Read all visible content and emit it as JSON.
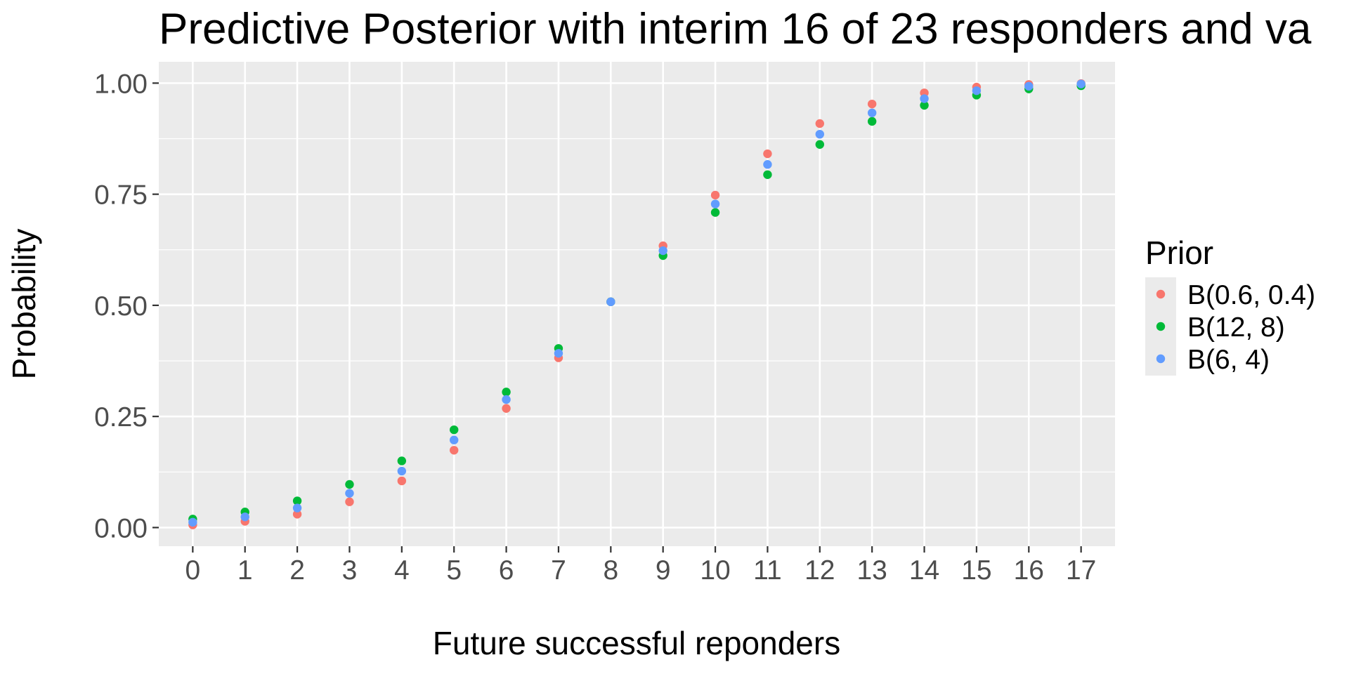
{
  "chart_data": {
    "type": "scatter",
    "title": "Predictive Posterior with interim 16 of 23 responders and va",
    "xlabel": "Future successful reponders",
    "ylabel": "Probability",
    "x": [
      0,
      1,
      2,
      3,
      4,
      5,
      6,
      7,
      8,
      9,
      10,
      11,
      12,
      13,
      14,
      15,
      16,
      17
    ],
    "x_tick_labels": [
      "0",
      "1",
      "2",
      "3",
      "4",
      "5",
      "6",
      "7",
      "8",
      "9",
      "10",
      "11",
      "12",
      "13",
      "14",
      "15",
      "16",
      "17"
    ],
    "y_tick_labels": [
      "0.00",
      "0.25",
      "0.50",
      "0.75",
      "1.00"
    ],
    "y_ticks": [
      0,
      0.25,
      0.5,
      0.75,
      1.0
    ],
    "xlim": [
      -0.65,
      17.65
    ],
    "ylim": [
      -0.042,
      1.048
    ],
    "grid": true,
    "legend": {
      "title": "Prior",
      "position": "right"
    },
    "series": [
      {
        "name": "B(0.6, 0.4)",
        "color": "#F8766D",
        "values": [
          0.006,
          0.014,
          0.03,
          0.058,
          0.105,
          0.174,
          0.268,
          0.382,
          0.508,
          0.634,
          0.748,
          0.841,
          0.909,
          0.953,
          0.978,
          0.991,
          0.997,
          0.999
        ]
      },
      {
        "name": "B(12, 8)",
        "color": "#00BA38",
        "values": [
          0.019,
          0.035,
          0.06,
          0.097,
          0.15,
          0.22,
          0.305,
          0.403,
          0.508,
          0.612,
          0.709,
          0.794,
          0.862,
          0.914,
          0.95,
          0.973,
          0.987,
          0.994
        ]
      },
      {
        "name": "B(6, 4)",
        "color": "#619CFF",
        "values": [
          0.012,
          0.024,
          0.044,
          0.077,
          0.127,
          0.197,
          0.288,
          0.392,
          0.508,
          0.623,
          0.728,
          0.817,
          0.885,
          0.933,
          0.965,
          0.983,
          0.993,
          0.998
        ]
      }
    ]
  }
}
